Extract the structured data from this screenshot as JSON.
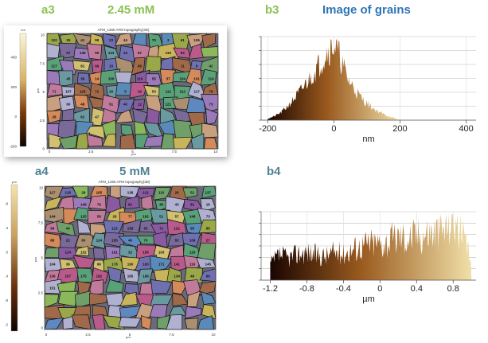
{
  "labels": {
    "a3": "a3",
    "a3_conc": "2.45 mM",
    "b3": "b3",
    "b3_title": "Image of grains",
    "a4": "a4",
    "a4_conc": "5 mM",
    "b4": "b4"
  },
  "colors": {
    "label_green": "#8cc152",
    "label_teal": "#4f8193",
    "label_blue": "#2e75b6",
    "hist_dark": "#1a0500",
    "hist_mid": "#9a5a1e",
    "hist_light": "#f0e0a8"
  },
  "a3_panel": {
    "window_title": "AFM_1265 AFM topography(3D)",
    "colorbar_unit": "nm",
    "colorbar_ticks": [
      "400",
      "200",
      "0",
      "-200"
    ],
    "yaxis_ticks": [
      "10",
      "7.5",
      "5",
      "2.5",
      "0"
    ],
    "yaxis_unit": "µm",
    "xaxis_ticks": [
      "0",
      "2.5",
      "5",
      "7.5",
      "10"
    ],
    "xaxis_unit": "µm",
    "grain_labels": [
      "122",
      "25",
      "41",
      "99",
      "23",
      "44",
      "70",
      "3",
      "61",
      "106",
      "57",
      "135",
      "90",
      "133",
      "24",
      "87",
      "115",
      "93",
      "117",
      "81",
      "66",
      "10",
      "96",
      "11",
      "8",
      "42",
      "45",
      "36",
      "14",
      "100",
      "119",
      "55",
      "37",
      "104",
      "101",
      "114",
      "71",
      "107",
      "129",
      "72",
      "20",
      "5",
      "32",
      "53",
      "112",
      "112",
      "117",
      "76",
      "60",
      "48",
      "51",
      "40",
      "12",
      "121",
      "73",
      "28",
      "62",
      "47"
    ]
  },
  "a4_panel": {
    "window_title": "AFM_1265 AFM topography(3D)",
    "colorbar_unit": "µm",
    "colorbar_ticks": [
      "0.8",
      "0.4",
      "0",
      "-0.4",
      "-0.8",
      "-1.2"
    ],
    "yaxis_ticks": [
      "10",
      "7.5",
      "5",
      "2.5",
      "0"
    ],
    "yaxis_unit": "µm",
    "xaxis_ticks": [
      "0",
      "2.5",
      "5",
      "7.5",
      "10"
    ],
    "xaxis_unit": "µm",
    "grain_labels": [
      "117",
      "128",
      "28",
      "165",
      "138",
      "112",
      "110",
      "26",
      "51",
      "137",
      "149",
      "76",
      "62",
      "40",
      "43",
      "81",
      "16",
      "144",
      "125",
      "56",
      "29",
      "77",
      "162",
      "51",
      "57",
      "148",
      "73",
      "99",
      "44",
      "113",
      "158",
      "55",
      "71",
      "122",
      "65",
      "85",
      "88",
      "22",
      "60",
      "124",
      "155",
      "46",
      "70",
      "53",
      "109",
      "27",
      "124",
      "152",
      "161",
      "32",
      "105",
      "103",
      "129",
      "104",
      "38",
      "96",
      "178",
      "190",
      "183",
      "171",
      "141",
      "116",
      "145",
      "136",
      "157",
      "175",
      "182",
      "185",
      "168",
      "134",
      "49",
      "99",
      "151"
    ]
  },
  "chart_data": [
    {
      "type": "area",
      "panel": "b3",
      "xlabel": "nm",
      "xlim": [
        -220,
        430
      ],
      "xticks": [
        -200,
        0,
        200,
        400
      ],
      "tick_labels": [
        "-200",
        "0",
        "200",
        "400"
      ],
      "ylabel": "",
      "grid": true,
      "x": [
        -200,
        -180,
        -160,
        -140,
        -120,
        -100,
        -80,
        -60,
        -40,
        -20,
        0,
        20,
        40,
        60,
        80,
        100,
        120,
        140,
        160,
        180,
        200
      ],
      "values": [
        0.02,
        0.05,
        0.1,
        0.18,
        0.28,
        0.38,
        0.5,
        0.62,
        0.75,
        0.9,
        1.0,
        0.8,
        0.55,
        0.42,
        0.3,
        0.22,
        0.15,
        0.1,
        0.06,
        0.03,
        0.0
      ]
    },
    {
      "type": "area",
      "panel": "b4",
      "xlabel": "µm",
      "xlim": [
        -1.3,
        1.05
      ],
      "xticks": [
        -1.2,
        -0.8,
        -0.4,
        0,
        0.4,
        0.8
      ],
      "tick_labels": [
        "-1.2",
        "-0.8",
        "-0.4",
        "0",
        "0.4",
        "0.8"
      ],
      "ylabel": "",
      "grid": true,
      "x": [
        -1.2,
        -1.1,
        -1.0,
        -0.9,
        -0.8,
        -0.7,
        -0.6,
        -0.5,
        -0.4,
        -0.3,
        -0.2,
        -0.1,
        0.0,
        0.1,
        0.2,
        0.3,
        0.4,
        0.5,
        0.6,
        0.7,
        0.8,
        0.9,
        1.0
      ],
      "values": [
        0.25,
        0.4,
        0.35,
        0.42,
        0.45,
        0.4,
        0.38,
        0.45,
        0.42,
        0.5,
        0.55,
        0.6,
        0.58,
        0.62,
        0.7,
        0.68,
        0.72,
        0.75,
        0.78,
        0.8,
        1.0,
        0.7,
        0.3
      ]
    }
  ]
}
